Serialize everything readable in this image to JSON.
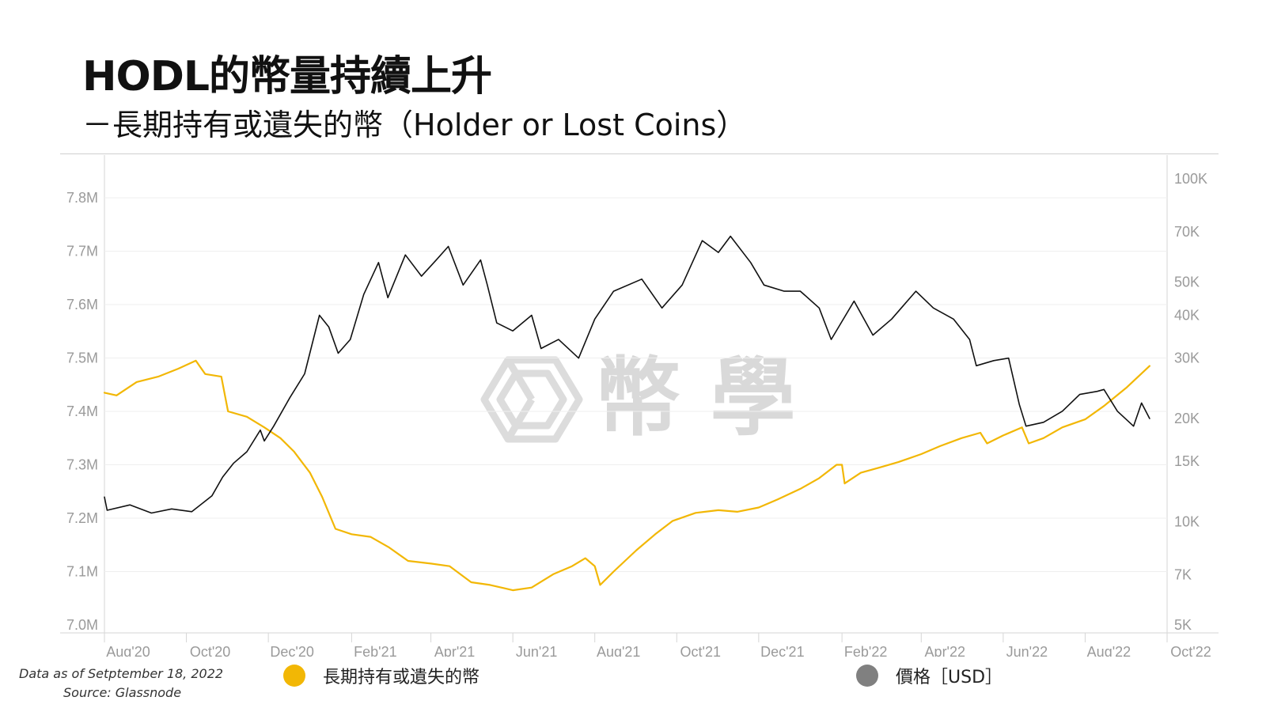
{
  "header": {
    "title": "HODL的幣量持續上升",
    "subtitle": "－長期持有或遺失的幣（Holder or Lost Coins）"
  },
  "footer": {
    "data_as_of": "Data as of Setptember 18, 2022",
    "source": "Source: Glassnode"
  },
  "watermark": {
    "text": "幣 學"
  },
  "legend": [
    {
      "label": "長期持有或遺失的幣",
      "color": "#F2B705"
    },
    {
      "label": "價格［USD］",
      "color": "#808080"
    }
  ],
  "chart_data": {
    "type": "line",
    "x_tick_labels": [
      "Aug'20",
      "Oct'20",
      "Dec'20",
      "Feb'21",
      "Apr'21",
      "Jun'21",
      "Aug'21",
      "Oct'21",
      "Dec'21",
      "Feb'22",
      "Apr'22",
      "Jun'22",
      "Aug'22",
      "Oct'22"
    ],
    "x_range": [
      "2020-08-01",
      "2022-10-01"
    ],
    "left_axis": {
      "ticks": [
        "7.0M",
        "7.1M",
        "7.2M",
        "7.3M",
        "7.4M",
        "7.5M",
        "7.6M",
        "7.7M",
        "7.8M"
      ],
      "range": [
        7.0,
        7.85
      ],
      "unit": "M"
    },
    "right_axis": {
      "ticks": [
        "5K",
        "7K",
        "10K",
        "15K",
        "20K",
        "30K",
        "40K",
        "50K",
        "70K",
        "100K"
      ],
      "scale": "log",
      "range": [
        5000,
        100000
      ]
    },
    "grid": true,
    "series": [
      {
        "name": "長期持有或遺失的幣",
        "axis": "left",
        "color": "#F2B705",
        "points": [
          [
            "2020-08-01",
            7.435
          ],
          [
            "2020-08-10",
            7.43
          ],
          [
            "2020-08-25",
            7.455
          ],
          [
            "2020-09-10",
            7.465
          ],
          [
            "2020-09-25",
            7.48
          ],
          [
            "2020-10-08",
            7.495
          ],
          [
            "2020-10-15",
            7.47
          ],
          [
            "2020-10-27",
            7.465
          ],
          [
            "2020-11-01",
            7.4
          ],
          [
            "2020-11-15",
            7.39
          ],
          [
            "2020-11-28",
            7.37
          ],
          [
            "2020-12-10",
            7.35
          ],
          [
            "2020-12-20",
            7.325
          ],
          [
            "2021-01-01",
            7.285
          ],
          [
            "2021-01-10",
            7.24
          ],
          [
            "2021-01-20",
            7.18
          ],
          [
            "2021-02-01",
            7.17
          ],
          [
            "2021-02-15",
            7.165
          ],
          [
            "2021-03-01",
            7.145
          ],
          [
            "2021-03-15",
            7.12
          ],
          [
            "2021-04-01",
            7.115
          ],
          [
            "2021-04-15",
            7.11
          ],
          [
            "2021-05-01",
            7.08
          ],
          [
            "2021-05-15",
            7.075
          ],
          [
            "2021-06-01",
            7.065
          ],
          [
            "2021-06-15",
            7.07
          ],
          [
            "2021-07-01",
            7.095
          ],
          [
            "2021-07-15",
            7.11
          ],
          [
            "2021-07-25",
            7.125
          ],
          [
            "2021-08-01",
            7.11
          ],
          [
            "2021-08-05",
            7.075
          ],
          [
            "2021-08-15",
            7.1
          ],
          [
            "2021-09-01",
            7.14
          ],
          [
            "2021-09-15",
            7.17
          ],
          [
            "2021-09-28",
            7.195
          ],
          [
            "2021-10-15",
            7.21
          ],
          [
            "2021-11-01",
            7.215
          ],
          [
            "2021-11-15",
            7.212
          ],
          [
            "2021-12-01",
            7.22
          ],
          [
            "2021-12-15",
            7.235
          ],
          [
            "2022-01-01",
            7.255
          ],
          [
            "2022-01-15",
            7.275
          ],
          [
            "2022-01-28",
            7.3
          ],
          [
            "2022-02-01",
            7.3
          ],
          [
            "2022-02-03",
            7.265
          ],
          [
            "2022-02-15",
            7.285
          ],
          [
            "2022-03-01",
            7.295
          ],
          [
            "2022-03-15",
            7.305
          ],
          [
            "2022-04-01",
            7.32
          ],
          [
            "2022-04-15",
            7.335
          ],
          [
            "2022-05-01",
            7.35
          ],
          [
            "2022-05-15",
            7.36
          ],
          [
            "2022-05-20",
            7.34
          ],
          [
            "2022-06-01",
            7.355
          ],
          [
            "2022-06-15",
            7.37
          ],
          [
            "2022-06-20",
            7.34
          ],
          [
            "2022-07-01",
            7.35
          ],
          [
            "2022-07-15",
            7.37
          ],
          [
            "2022-08-01",
            7.385
          ],
          [
            "2022-08-15",
            7.41
          ],
          [
            "2022-09-01",
            7.445
          ],
          [
            "2022-09-18",
            7.485
          ]
        ]
      },
      {
        "name": "價格［USD］",
        "axis": "right",
        "color": "#111111",
        "points": [
          [
            "2020-08-01",
            11800
          ],
          [
            "2020-08-03",
            10800
          ],
          [
            "2020-08-20",
            11200
          ],
          [
            "2020-09-05",
            10600
          ],
          [
            "2020-09-20",
            10900
          ],
          [
            "2020-10-05",
            10700
          ],
          [
            "2020-10-20",
            11900
          ],
          [
            "2020-10-28",
            13500
          ],
          [
            "2020-11-05",
            14800
          ],
          [
            "2020-11-15",
            16000
          ],
          [
            "2020-11-25",
            18500
          ],
          [
            "2020-11-28",
            17200
          ],
          [
            "2020-12-05",
            19000
          ],
          [
            "2020-12-17",
            23000
          ],
          [
            "2020-12-28",
            27000
          ],
          [
            "2021-01-08",
            40000
          ],
          [
            "2021-01-15",
            37000
          ],
          [
            "2021-01-22",
            31000
          ],
          [
            "2021-01-31",
            34000
          ],
          [
            "2021-02-10",
            46000
          ],
          [
            "2021-02-21",
            57000
          ],
          [
            "2021-02-28",
            45000
          ],
          [
            "2021-03-13",
            60000
          ],
          [
            "2021-03-25",
            52000
          ],
          [
            "2021-04-05",
            58000
          ],
          [
            "2021-04-14",
            63500
          ],
          [
            "2021-04-25",
            49000
          ],
          [
            "2021-05-08",
            58000
          ],
          [
            "2021-05-13",
            49000
          ],
          [
            "2021-05-20",
            38000
          ],
          [
            "2021-06-01",
            36000
          ],
          [
            "2021-06-15",
            40000
          ],
          [
            "2021-06-22",
            32000
          ],
          [
            "2021-07-05",
            34000
          ],
          [
            "2021-07-20",
            30000
          ],
          [
            "2021-08-01",
            39000
          ],
          [
            "2021-08-15",
            47000
          ],
          [
            "2021-09-05",
            51000
          ],
          [
            "2021-09-20",
            42000
          ],
          [
            "2021-10-05",
            49000
          ],
          [
            "2021-10-20",
            66000
          ],
          [
            "2021-11-01",
            61000
          ],
          [
            "2021-11-10",
            68000
          ],
          [
            "2021-11-25",
            57000
          ],
          [
            "2021-12-05",
            49000
          ],
          [
            "2021-12-20",
            47000
          ],
          [
            "2022-01-01",
            47000
          ],
          [
            "2022-01-15",
            42000
          ],
          [
            "2022-01-24",
            34000
          ],
          [
            "2022-02-10",
            44000
          ],
          [
            "2022-02-24",
            35000
          ],
          [
            "2022-03-10",
            39000
          ],
          [
            "2022-03-28",
            47000
          ],
          [
            "2022-04-10",
            42000
          ],
          [
            "2022-04-25",
            39000
          ],
          [
            "2022-05-07",
            34000
          ],
          [
            "2022-05-12",
            28500
          ],
          [
            "2022-05-25",
            29500
          ],
          [
            "2022-06-05",
            30000
          ],
          [
            "2022-06-13",
            22000
          ],
          [
            "2022-06-18",
            19000
          ],
          [
            "2022-07-01",
            19500
          ],
          [
            "2022-07-15",
            21000
          ],
          [
            "2022-07-28",
            23500
          ],
          [
            "2022-08-10",
            24000
          ],
          [
            "2022-08-15",
            24300
          ],
          [
            "2022-08-25",
            21000
          ],
          [
            "2022-09-06",
            19000
          ],
          [
            "2022-09-12",
            22200
          ],
          [
            "2022-09-18",
            20000
          ]
        ]
      }
    ]
  }
}
